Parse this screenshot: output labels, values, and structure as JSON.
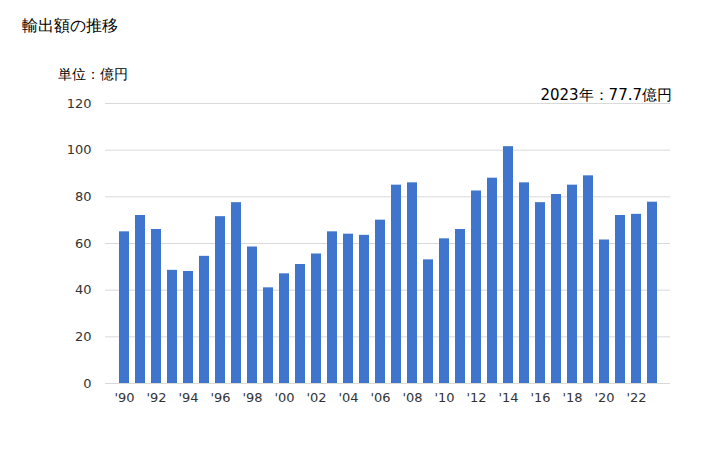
{
  "chart_data": {
    "type": "bar",
    "title": "輸出額の推移",
    "subtitle": "単位：億円",
    "annotation": "2023年：77.7億円",
    "categories": [
      "'90",
      null,
      "'92",
      null,
      "'94",
      null,
      "'96",
      null,
      "'98",
      null,
      "'00",
      null,
      "'02",
      null,
      "'04",
      null,
      "'06",
      null,
      "'08",
      null,
      "'10",
      null,
      "'12",
      null,
      "'14",
      null,
      "'16",
      null,
      "'18",
      null,
      "'20",
      null,
      "'22",
      null
    ],
    "values": [
      65,
      72,
      66,
      48.5,
      48,
      54.5,
      71.5,
      77.5,
      58.5,
      41,
      47,
      51,
      55.5,
      65,
      64,
      63.5,
      70,
      85,
      86,
      53,
      62,
      66,
      82.5,
      88,
      101.5,
      86,
      77.5,
      81,
      85,
      89,
      61.5,
      72,
      72.5,
      77.7
    ],
    "color": "#3f75cc",
    "ylim": [
      0,
      120
    ],
    "yticks": [
      0,
      20,
      40,
      60,
      80,
      100,
      120
    ],
    "grid": true
  }
}
